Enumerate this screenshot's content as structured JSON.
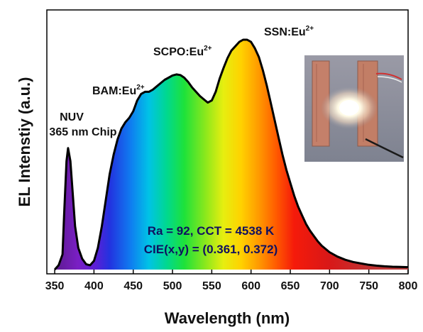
{
  "chart_data": {
    "type": "area",
    "xlabel": "Wavelength (nm)",
    "ylabel": "EL Intenstiy (a.u.)",
    "xlim": [
      340,
      800
    ],
    "ylim": [
      0,
      1.08
    ],
    "x_ticks": [
      350,
      400,
      450,
      500,
      550,
      600,
      650,
      700,
      750,
      800
    ],
    "grid": false,
    "fill": "visible-spectrum gradient",
    "series": [
      {
        "x": [
          350,
          355,
          360,
          362,
          365,
          367,
          370,
          373,
          376,
          380,
          385,
          390,
          395,
          400,
          405,
          410,
          415,
          420,
          425,
          430,
          435,
          440,
          445,
          450,
          455,
          460,
          465,
          470,
          475,
          480,
          485,
          490,
          495,
          500,
          505,
          510,
          515,
          520,
          525,
          530,
          535,
          540,
          545,
          550,
          555,
          560,
          565,
          570,
          575,
          580,
          585,
          590,
          595,
          600,
          605,
          610,
          615,
          620,
          625,
          630,
          635,
          640,
          645,
          650,
          655,
          660,
          665,
          670,
          675,
          680,
          685,
          690,
          700,
          710,
          720,
          730,
          740,
          750,
          760,
          770,
          780,
          790,
          800
        ],
        "values": [
          0.0,
          0.02,
          0.07,
          0.25,
          0.5,
          0.56,
          0.5,
          0.35,
          0.2,
          0.1,
          0.05,
          0.025,
          0.02,
          0.04,
          0.1,
          0.2,
          0.32,
          0.44,
          0.53,
          0.6,
          0.65,
          0.68,
          0.7,
          0.73,
          0.78,
          0.81,
          0.82,
          0.82,
          0.83,
          0.845,
          0.86,
          0.875,
          0.885,
          0.895,
          0.9,
          0.897,
          0.885,
          0.865,
          0.84,
          0.82,
          0.8,
          0.785,
          0.77,
          0.78,
          0.82,
          0.88,
          0.93,
          0.975,
          1.01,
          1.03,
          1.05,
          1.06,
          1.06,
          1.05,
          1.02,
          0.98,
          0.92,
          0.85,
          0.77,
          0.69,
          0.61,
          0.53,
          0.46,
          0.4,
          0.34,
          0.29,
          0.25,
          0.21,
          0.18,
          0.155,
          0.13,
          0.11,
          0.08,
          0.06,
          0.045,
          0.035,
          0.028,
          0.022,
          0.018,
          0.015,
          0.013,
          0.012,
          0.011
        ]
      }
    ],
    "annotations": [
      {
        "lines": [
          "NUV",
          "365 nm Chip"
        ],
        "x": 367,
        "y": 0.56
      },
      {
        "base": "BAM:Eu",
        "superscript": "2+",
        "x": 440,
        "y": 0.7
      },
      {
        "base": "SCPO:Eu",
        "superscript": "2+",
        "x": 505,
        "y": 0.9
      },
      {
        "base": "SSN:Eu",
        "superscript": "2+",
        "x": 605,
        "y": 1.06
      }
    ],
    "metrics": {
      "line1": "Ra = 92, CCT = 4538 K",
      "line2": "CIE(x,y) = (0.361, 0.372)"
    },
    "inset": {
      "description": "photo of glowing pc-LED device",
      "colors": {
        "glow": "#ffffff",
        "copper": "#c47a63",
        "background": "#8a8d9a"
      }
    }
  }
}
